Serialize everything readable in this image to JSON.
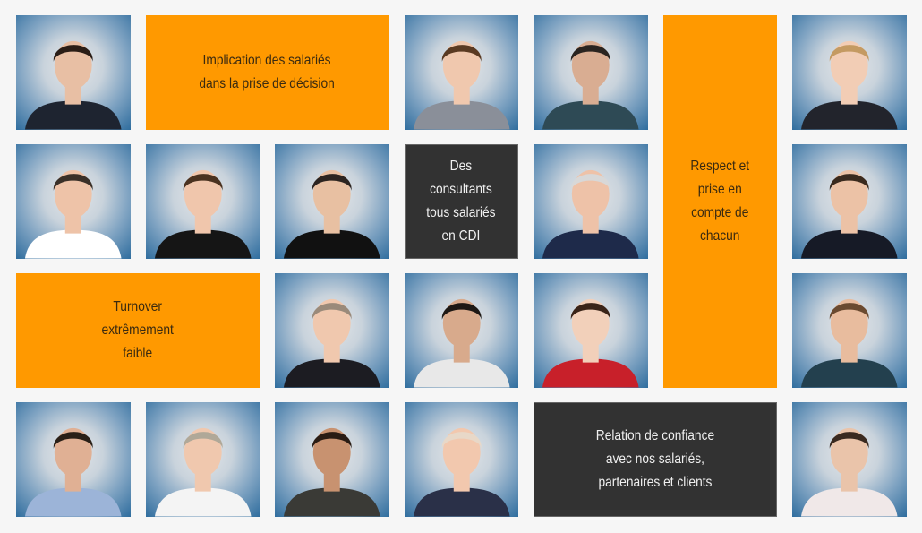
{
  "colors": {
    "orange": "#ff9900",
    "dark": "#323232",
    "background": "#f6f6f6"
  },
  "messages": {
    "implication": "Implication des salariés\ndans la prise de décision",
    "consultants": "Des\nconsultants\ntous salariés\nen CDI",
    "respect": "Respect et\nprise en\ncompte de\nchacun",
    "turnover": "Turnover\nextrêmement\nfaible",
    "relation": "Relation de confiance\navec nos salariés,\npartenaires et clients"
  },
  "photos": [
    {
      "hair": "#2a1d16",
      "skin": "#e8bfa4",
      "shirt": "#1e2430"
    },
    {
      "hair": "#5a3a22",
      "skin": "#f0c8ae",
      "shirt": "#8a8f99"
    },
    {
      "hair": "#2a2420",
      "skin": "#d9ad92",
      "shirt": "#2e4a55"
    },
    {
      "hair": "#c49a62",
      "skin": "#f2cdb5",
      "shirt": "#22242c"
    },
    {
      "hair": "#3a3028",
      "skin": "#eec3a8",
      "shirt": "#ffffff"
    },
    {
      "hair": "#4a3220",
      "skin": "#f0c6ac",
      "shirt": "#151515"
    },
    {
      "hair": "#2c2420",
      "skin": "#e8c0a2",
      "shirt": "#111111"
    },
    {
      "hair": "#d8d8d8",
      "skin": "#eec2a8",
      "shirt": "#1e2a4a"
    },
    {
      "hair": "#3a2a1e",
      "skin": "#ecc2a6",
      "shirt": "#161a26"
    },
    {
      "hair": "#9a8a7a",
      "skin": "#f0c8ae",
      "shirt": "#1c1c22"
    },
    {
      "hair": "#1e1814",
      "skin": "#d8aa8c",
      "shirt": "#e8e8e8"
    },
    {
      "hair": "#3a2418",
      "skin": "#f2d0ba",
      "shirt": "#c8202a"
    },
    {
      "hair": "#6a4a30",
      "skin": "#e8bc9e",
      "shirt": "#23404e"
    },
    {
      "hair": "#2a2018",
      "skin": "#e0b094",
      "shirt": "#9cb4d8"
    },
    {
      "hair": "#b0a898",
      "skin": "#f0c8ae",
      "shirt": "#f4f4f4"
    },
    {
      "hair": "#2a1c14",
      "skin": "#c89270",
      "shirt": "#3a3a36"
    },
    {
      "hair": "#e8d8c8",
      "skin": "#f2c8ae",
      "shirt": "#2a3048"
    },
    {
      "hair": "#3a2a20",
      "skin": "#eac4aa",
      "shirt": "#f0e8e8"
    }
  ]
}
